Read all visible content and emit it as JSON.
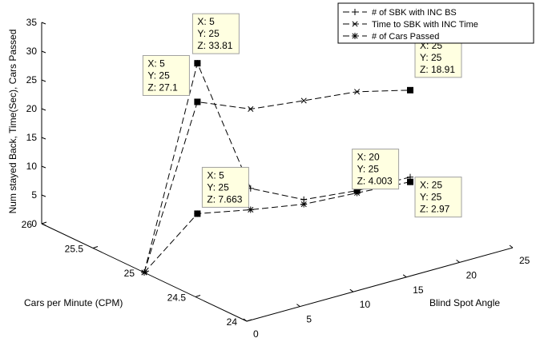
{
  "chart_data": {
    "type": "line",
    "title": "",
    "xlabel": "Blind Spot Angle",
    "ylabel": "Cars per Minute (CPM)",
    "zlabel": "Num stayed Back, Time(Sec), Cars Passed",
    "xlim": [
      0,
      25
    ],
    "ylim": [
      24,
      26
    ],
    "zlim": [
      0,
      35
    ],
    "x_ticks": [
      "0",
      "5",
      "10",
      "15",
      "20",
      "25"
    ],
    "y_ticks": [
      "24",
      "24.5",
      "25",
      "25.5",
      "26"
    ],
    "z_ticks": [
      "0",
      "5",
      "10",
      "15",
      "20",
      "25",
      "30",
      "35"
    ],
    "grid": false,
    "legend_position": "top-right",
    "series": [
      {
        "name": "# of SBK with INC BS",
        "marker": "+",
        "points": [
          {
            "x": 0,
            "y": 25,
            "z": 0
          },
          {
            "x": 5,
            "y": 25,
            "z": 33.81
          },
          {
            "x": 10,
            "y": 25,
            "z": 9.5
          },
          {
            "x": 15,
            "y": 25,
            "z": 5
          },
          {
            "x": 20,
            "y": 25,
            "z": 4.003
          },
          {
            "x": 25,
            "y": 25,
            "z": 3.8
          }
        ]
      },
      {
        "name": "Time to SBK with INC Time",
        "marker": "x",
        "points": [
          {
            "x": 0,
            "y": 25,
            "z": 0
          },
          {
            "x": 5,
            "y": 25,
            "z": 27.1
          },
          {
            "x": 10,
            "y": 25,
            "z": 23.3
          },
          {
            "x": 15,
            "y": 25,
            "z": 22.2
          },
          {
            "x": 20,
            "y": 25,
            "z": 21.2
          },
          {
            "x": 25,
            "y": 25,
            "z": 18.91
          }
        ]
      },
      {
        "name": "# of Cars Passed",
        "marker": "*",
        "points": [
          {
            "x": 0,
            "y": 25,
            "z": 0
          },
          {
            "x": 5,
            "y": 25,
            "z": 7.663
          },
          {
            "x": 10,
            "y": 25,
            "z": 5.8
          },
          {
            "x": 15,
            "y": 25,
            "z": 4.2
          },
          {
            "x": 20,
            "y": 25,
            "z": 3.6
          },
          {
            "x": 25,
            "y": 25,
            "z": 2.97
          }
        ]
      }
    ],
    "datatips": [
      {
        "x": 5,
        "y": 25,
        "z": 33.81,
        "lines": [
          "X: 5",
          "Y: 25",
          "Z: 33.81"
        ]
      },
      {
        "x": 5,
        "y": 25,
        "z": 27.1,
        "lines": [
          "X: 5",
          "Y: 25",
          "Z: 27.1"
        ]
      },
      {
        "x": 25,
        "y": 25,
        "z": 18.91,
        "lines": [
          "X: 25",
          "Y: 25",
          "Z: 18.91"
        ]
      },
      {
        "x": 5,
        "y": 25,
        "z": 7.663,
        "lines": [
          "X: 5",
          "Y: 25",
          "Z: 7.663"
        ]
      },
      {
        "x": 20,
        "y": 25,
        "z": 4.003,
        "lines": [
          "X: 20",
          "Y: 25",
          "Z: 4.003"
        ]
      },
      {
        "x": 25,
        "y": 25,
        "z": 2.97,
        "lines": [
          "X: 25",
          "Y: 25",
          "Z: 2.97"
        ]
      }
    ]
  },
  "colors": {
    "line": "#000000",
    "datatip_bg": "#ffffe1",
    "datatip_border": "#a0a0a0",
    "background": "#ffffff"
  }
}
